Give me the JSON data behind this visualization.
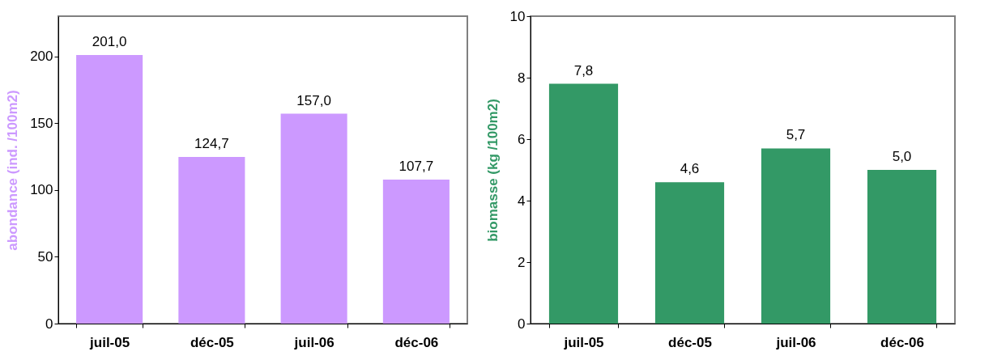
{
  "chart_data": [
    {
      "type": "bar",
      "categories": [
        "juil-05",
        "déc-05",
        "juil-06",
        "déc-06"
      ],
      "ylabel": "abondance (ind. /100m2)",
      "series": [
        {
          "color": "#cc99ff",
          "values": [
            201.0,
            124.7,
            157.0,
            107.7
          ],
          "value_labels": [
            "201,0",
            "124,7",
            "157,0",
            "107,7"
          ]
        }
      ],
      "ylim": [
        0,
        230
      ],
      "yticks": [
        0,
        50,
        100,
        150,
        200
      ],
      "grid": false
    },
    {
      "type": "bar",
      "categories": [
        "juil-05",
        "déc-05",
        "juil-06",
        "déc-06"
      ],
      "ylabel": "biomasse (kg /100m2)",
      "series": [
        {
          "color": "#339966",
          "values": [
            7.8,
            4.6,
            5.7,
            5.0
          ],
          "value_labels": [
            "7,8",
            "4,6",
            "5,7",
            "5,0"
          ]
        }
      ],
      "ylim": [
        0,
        10
      ],
      "yticks": [
        0,
        2,
        4,
        6,
        8,
        10
      ],
      "grid": false
    }
  ]
}
